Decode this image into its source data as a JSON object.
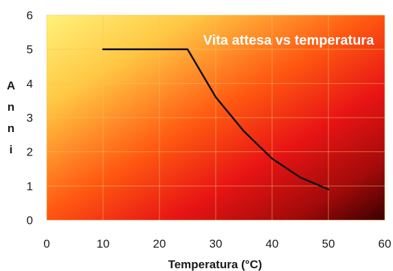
{
  "chart_data": {
    "type": "line",
    "title": "Vita attesa vs temperatura",
    "xlabel": "Temperatura (°C)",
    "ylabel_letters": [
      "A",
      "n",
      "n",
      "i"
    ],
    "xlim": [
      0,
      60
    ],
    "ylim": [
      0,
      6
    ],
    "x_ticks": [
      "0",
      "10",
      "20",
      "30",
      "40",
      "50",
      "60"
    ],
    "y_ticks": [
      "0",
      "1",
      "2",
      "3",
      "4",
      "5",
      "6"
    ],
    "grid": true,
    "series": [
      {
        "x": [
          10,
          15,
          20,
          25,
          30,
          35,
          40,
          45,
          50
        ],
        "y": [
          5,
          5,
          5,
          5,
          3.6,
          2.6,
          1.8,
          1.25,
          0.9
        ]
      }
    ],
    "colors": {
      "line": "#111111",
      "bg_light": "#fff27a",
      "bg_mid": "#ff3a00",
      "bg_dark": "#3b0000",
      "grid": "#f3c26a"
    }
  }
}
